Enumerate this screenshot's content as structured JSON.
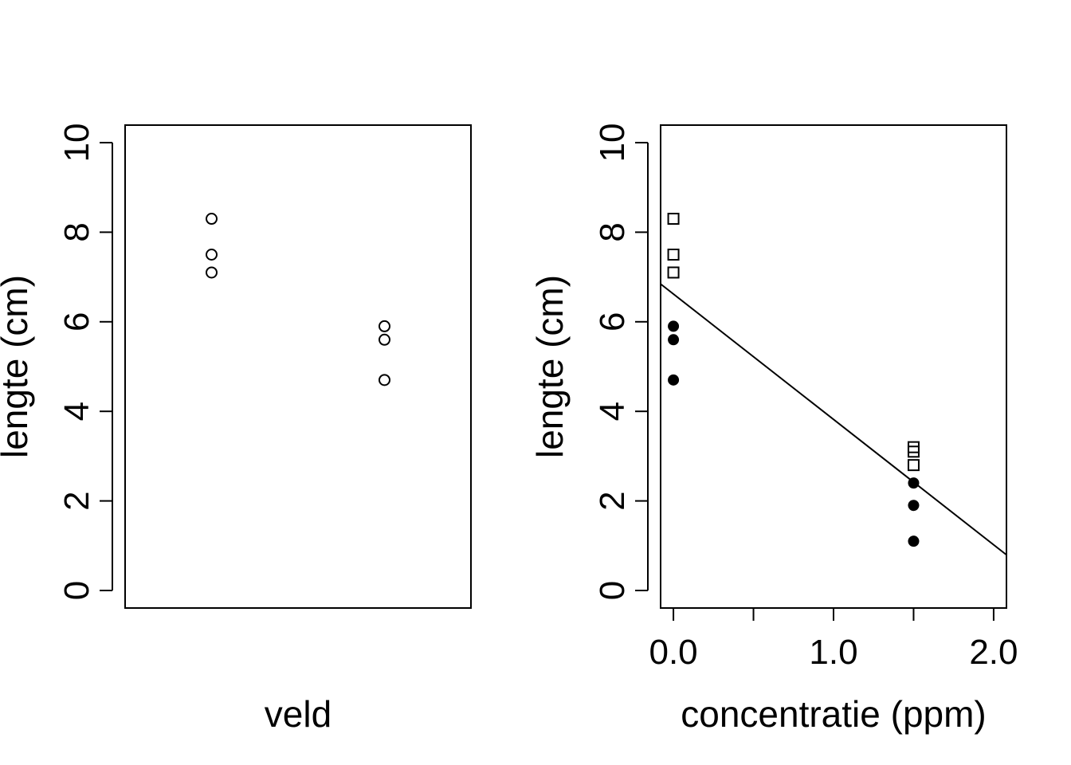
{
  "chart_data": [
    {
      "type": "scatter",
      "xlabel": "veld",
      "ylabel": "lengte (cm)",
      "ylim": [
        0,
        10
      ],
      "yticks": [
        "0",
        "2",
        "4",
        "6",
        "8",
        "10"
      ],
      "xlim": [
        0.5,
        2.5
      ],
      "x_axis_drawn": false,
      "series": [
        {
          "marker": "open-circle",
          "x": [
            1,
            1,
            1,
            2,
            2,
            2
          ],
          "y": [
            8.3,
            7.5,
            7.1,
            5.9,
            5.6,
            4.7
          ]
        }
      ]
    },
    {
      "type": "scatter",
      "xlabel": "concentratie (ppm)",
      "ylabel": "lengte (cm)",
      "ylim": [
        0,
        10
      ],
      "xlim": [
        -0.08,
        2.08
      ],
      "yticks": [
        "0",
        "2",
        "4",
        "6",
        "8",
        "10"
      ],
      "xticks": [
        0,
        0.5,
        1.0,
        1.5,
        2.0
      ],
      "xtick_labels": [
        "0.0",
        "",
        "1.0",
        "",
        "2.0"
      ],
      "series": [
        {
          "marker": "open-square",
          "x": [
            0,
            0,
            0,
            1.5,
            1.5,
            1.5
          ],
          "y": [
            8.3,
            7.5,
            7.1,
            3.2,
            3.1,
            2.8
          ]
        },
        {
          "marker": "filled-circle",
          "x": [
            0,
            0,
            0,
            1.5,
            1.5,
            1.5
          ],
          "y": [
            5.9,
            5.6,
            4.7,
            2.4,
            1.9,
            1.1
          ]
        }
      ],
      "regression_line": {
        "intercept": 6.62,
        "slope": -2.8
      }
    }
  ]
}
